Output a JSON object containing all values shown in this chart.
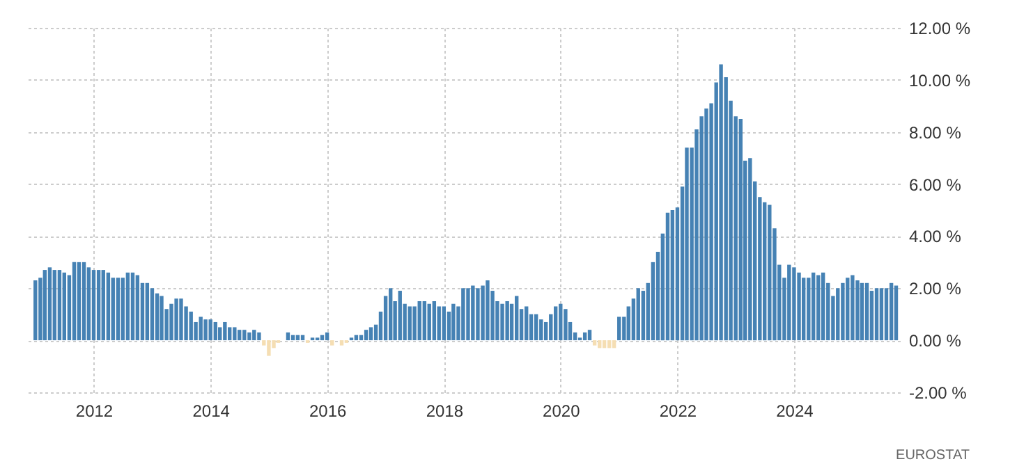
{
  "chart_data": {
    "type": "bar",
    "x": [
      "2011-01",
      "2011-02",
      "2011-03",
      "2011-04",
      "2011-05",
      "2011-06",
      "2011-07",
      "2011-08",
      "2011-09",
      "2011-10",
      "2011-11",
      "2011-12",
      "2012-01",
      "2012-02",
      "2012-03",
      "2012-04",
      "2012-05",
      "2012-06",
      "2012-07",
      "2012-08",
      "2012-09",
      "2012-10",
      "2012-11",
      "2012-12",
      "2013-01",
      "2013-02",
      "2013-03",
      "2013-04",
      "2013-05",
      "2013-06",
      "2013-07",
      "2013-08",
      "2013-09",
      "2013-10",
      "2013-11",
      "2013-12",
      "2014-01",
      "2014-02",
      "2014-03",
      "2014-04",
      "2014-05",
      "2014-06",
      "2014-07",
      "2014-08",
      "2014-09",
      "2014-10",
      "2014-11",
      "2014-12",
      "2015-01",
      "2015-02",
      "2015-03",
      "2015-04",
      "2015-05",
      "2015-06",
      "2015-07",
      "2015-08",
      "2015-09",
      "2015-10",
      "2015-11",
      "2015-12",
      "2016-01",
      "2016-02",
      "2016-03",
      "2016-04",
      "2016-05",
      "2016-06",
      "2016-07",
      "2016-08",
      "2016-09",
      "2016-10",
      "2016-11",
      "2016-12",
      "2017-01",
      "2017-02",
      "2017-03",
      "2017-04",
      "2017-05",
      "2017-06",
      "2017-07",
      "2017-08",
      "2017-09",
      "2017-10",
      "2017-11",
      "2017-12",
      "2018-01",
      "2018-02",
      "2018-03",
      "2018-04",
      "2018-05",
      "2018-06",
      "2018-07",
      "2018-08",
      "2018-09",
      "2018-10",
      "2018-11",
      "2018-12",
      "2019-01",
      "2019-02",
      "2019-03",
      "2019-04",
      "2019-05",
      "2019-06",
      "2019-07",
      "2019-08",
      "2019-09",
      "2019-10",
      "2019-11",
      "2019-12",
      "2020-01",
      "2020-02",
      "2020-03",
      "2020-04",
      "2020-05",
      "2020-06",
      "2020-07",
      "2020-08",
      "2020-09",
      "2020-10",
      "2020-11",
      "2020-12",
      "2021-01",
      "2021-02",
      "2021-03",
      "2021-04",
      "2021-05",
      "2021-06",
      "2021-07",
      "2021-08",
      "2021-09",
      "2021-10",
      "2021-11",
      "2021-12",
      "2022-01",
      "2022-02",
      "2022-03",
      "2022-04",
      "2022-05",
      "2022-06",
      "2022-07",
      "2022-08",
      "2022-09",
      "2022-10",
      "2022-11",
      "2022-12",
      "2023-01",
      "2023-02",
      "2023-03",
      "2023-04",
      "2023-05",
      "2023-06",
      "2023-07",
      "2023-08",
      "2023-09",
      "2023-10",
      "2023-11",
      "2023-12",
      "2024-01",
      "2024-02",
      "2024-03",
      "2024-04",
      "2024-05",
      "2024-06",
      "2024-07",
      "2024-08",
      "2024-09",
      "2024-10",
      "2024-11",
      "2024-12",
      "2025-01",
      "2025-02",
      "2025-03",
      "2025-04",
      "2025-05",
      "2025-06",
      "2025-07",
      "2025-08",
      "2025-09",
      "2025-10"
    ],
    "values": [
      2.3,
      2.4,
      2.7,
      2.8,
      2.7,
      2.7,
      2.6,
      2.5,
      3.0,
      3.0,
      3.0,
      2.8,
      2.7,
      2.7,
      2.7,
      2.6,
      2.4,
      2.4,
      2.4,
      2.6,
      2.6,
      2.5,
      2.2,
      2.2,
      2.0,
      1.8,
      1.7,
      1.2,
      1.4,
      1.6,
      1.6,
      1.3,
      1.1,
      0.7,
      0.9,
      0.8,
      0.8,
      0.7,
      0.5,
      0.7,
      0.5,
      0.5,
      0.4,
      0.4,
      0.3,
      0.4,
      0.3,
      -0.2,
      -0.6,
      -0.3,
      -0.1,
      0.0,
      0.3,
      0.2,
      0.2,
      0.2,
      -0.1,
      0.1,
      0.1,
      0.2,
      0.3,
      -0.2,
      0.0,
      -0.2,
      -0.1,
      0.1,
      0.2,
      0.2,
      0.4,
      0.5,
      0.6,
      1.1,
      1.7,
      2.0,
      1.5,
      1.9,
      1.4,
      1.3,
      1.3,
      1.5,
      1.5,
      1.4,
      1.5,
      1.3,
      1.3,
      1.1,
      1.4,
      1.3,
      2.0,
      2.0,
      2.1,
      2.0,
      2.1,
      2.3,
      1.9,
      1.5,
      1.4,
      1.5,
      1.4,
      1.7,
      1.2,
      1.3,
      1.0,
      1.0,
      0.8,
      0.7,
      1.0,
      1.3,
      1.4,
      1.2,
      0.7,
      0.3,
      0.1,
      0.3,
      0.4,
      -0.2,
      -0.3,
      -0.3,
      -0.3,
      -0.3,
      0.9,
      0.9,
      1.3,
      1.6,
      2.0,
      1.9,
      2.2,
      3.0,
      3.4,
      4.1,
      4.9,
      5.0,
      5.1,
      5.9,
      7.4,
      7.4,
      8.1,
      8.6,
      8.9,
      9.1,
      9.9,
      10.6,
      10.1,
      9.2,
      8.6,
      8.5,
      6.9,
      7.0,
      6.1,
      5.5,
      5.3,
      5.2,
      4.3,
      2.9,
      2.4,
      2.9,
      2.8,
      2.6,
      2.4,
      2.4,
      2.6,
      2.5,
      2.6,
      2.2,
      1.7,
      2.0,
      2.2,
      2.4,
      2.5,
      2.3,
      2.2,
      2.2,
      1.9,
      2.0,
      2.0,
      2.0,
      2.2,
      2.1
    ],
    "colors": [
      "#4682b4",
      "#4682b4",
      "#4682b4",
      "#4682b4",
      "#4682b4",
      "#4682b4",
      "#4682b4",
      "#4682b4",
      "#4682b4",
      "#4682b4",
      "#4682b4",
      "#4682b4",
      "#4682b4",
      "#4682b4",
      "#4682b4",
      "#4682b4",
      "#4682b4",
      "#4682b4",
      "#4682b4",
      "#4682b4",
      "#4682b4",
      "#4682b4",
      "#4682b4",
      "#4682b4",
      "#4682b4",
      "#4682b4",
      "#4682b4",
      "#4682b4",
      "#4682b4",
      "#4682b4",
      "#4682b4",
      "#4682b4",
      "#4682b4",
      "#4682b4",
      "#4682b4",
      "#4682b4",
      "#4682b4",
      "#4682b4",
      "#4682b4",
      "#4682b4",
      "#4682b4",
      "#4682b4",
      "#4682b4",
      "#4682b4",
      "#4682b4",
      "#4682b4",
      "#4682b4",
      "#f5deb3",
      "#f5deb3",
      "#f5deb3",
      "#f5deb3",
      "#4682b4",
      "#4682b4",
      "#4682b4",
      "#4682b4",
      "#4682b4",
      "#f5deb3",
      "#4682b4",
      "#4682b4",
      "#4682b4",
      "#4682b4",
      "#f5deb3",
      "#4682b4",
      "#f5deb3",
      "#f5deb3",
      "#4682b4",
      "#4682b4",
      "#4682b4",
      "#4682b4",
      "#4682b4",
      "#4682b4",
      "#4682b4",
      "#4682b4",
      "#4682b4",
      "#4682b4",
      "#4682b4",
      "#4682b4",
      "#4682b4",
      "#4682b4",
      "#4682b4",
      "#4682b4",
      "#4682b4",
      "#4682b4",
      "#4682b4",
      "#4682b4",
      "#4682b4",
      "#4682b4",
      "#4682b4",
      "#4682b4",
      "#4682b4",
      "#4682b4",
      "#4682b4",
      "#4682b4",
      "#4682b4",
      "#4682b4",
      "#4682b4",
      "#4682b4",
      "#4682b4",
      "#4682b4",
      "#4682b4",
      "#4682b4",
      "#4682b4",
      "#4682b4",
      "#4682b4",
      "#4682b4",
      "#4682b4",
      "#4682b4",
      "#4682b4",
      "#4682b4",
      "#4682b4",
      "#4682b4",
      "#4682b4",
      "#4682b4",
      "#4682b4",
      "#4682b4",
      "#f5deb3",
      "#f5deb3",
      "#f5deb3",
      "#f5deb3",
      "#f5deb3",
      "#4682b4",
      "#4682b4",
      "#4682b4",
      "#4682b4",
      "#4682b4",
      "#4682b4",
      "#4682b4",
      "#4682b4",
      "#4682b4",
      "#4682b4",
      "#4682b4",
      "#4682b4",
      "#4682b4",
      "#4682b4",
      "#4682b4",
      "#4682b4",
      "#4682b4",
      "#4682b4",
      "#4682b4",
      "#4682b4",
      "#4682b4",
      "#4682b4",
      "#4682b4",
      "#4682b4",
      "#4682b4",
      "#4682b4",
      "#4682b4",
      "#4682b4",
      "#4682b4",
      "#4682b4",
      "#4682b4",
      "#4682b4",
      "#4682b4",
      "#4682b4",
      "#4682b4",
      "#4682b4",
      "#4682b4",
      "#4682b4",
      "#4682b4",
      "#4682b4",
      "#4682b4",
      "#4682b4",
      "#4682b4",
      "#4682b4",
      "#4682b4",
      "#4682b4",
      "#4682b4",
      "#4682b4",
      "#4682b4",
      "#4682b4",
      "#4682b4",
      "#4682b4",
      "#4682b4",
      "#4682b4",
      "#4682b4",
      "#4682b4",
      "#4682b4",
      "#4682b4"
    ],
    "xlim": [
      "2010-11-15",
      "2025-10-25"
    ],
    "xticks": [
      "2012",
      "2014",
      "2016",
      "2018",
      "2020",
      "2022",
      "2024"
    ],
    "ylim": [
      -2,
      12
    ],
    "yticks": [
      {
        "value": -2,
        "label": "-2.00 %"
      },
      {
        "value": 0,
        "label": "0.00 %"
      },
      {
        "value": 2,
        "label": "2.00 %"
      },
      {
        "value": 4,
        "label": "4.00 %"
      },
      {
        "value": 6,
        "label": "6.00 %"
      },
      {
        "value": 8,
        "label": "8.00 %"
      },
      {
        "value": 10,
        "label": "10.00 %"
      },
      {
        "value": 12,
        "label": "12.00 %"
      }
    ],
    "grid": true,
    "legend": false,
    "annotations": [
      "EUROSTAT"
    ]
  }
}
